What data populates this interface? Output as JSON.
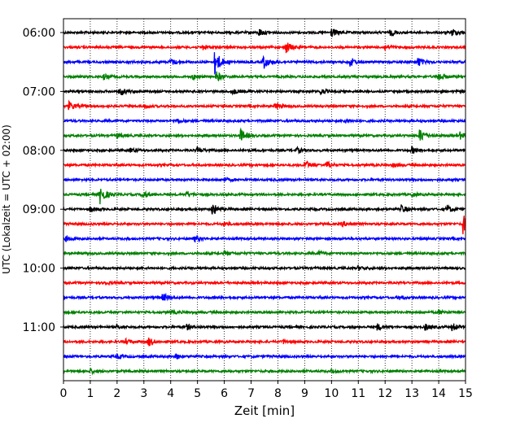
{
  "chart_data": {
    "type": "line",
    "xlabel": "Zeit  [min]",
    "ylabel": "UTC (Lokalzeit = UTC + 02:00)",
    "xlim": [
      0,
      15
    ],
    "xticks": [
      "0",
      "1",
      "2",
      "3",
      "4",
      "5",
      "6",
      "7",
      "8",
      "9",
      "10",
      "11",
      "12",
      "13",
      "14",
      "15"
    ],
    "ytick_labels": [
      "06:00",
      "07:00",
      "08:00",
      "09:00",
      "10:00",
      "11:00"
    ],
    "grid": "vertical dotted at each minute",
    "trace_interval_minutes": 15,
    "colors": [
      "#000000",
      "#ff0000",
      "#0000ff",
      "#008000"
    ],
    "traces": [
      {
        "start": "06:00",
        "color": "#000000",
        "events": [
          {
            "t": 7.3,
            "amp": 0.6
          },
          {
            "t": 10.0,
            "amp": 0.7
          },
          {
            "t": 12.2,
            "amp": 0.5
          },
          {
            "t": 14.5,
            "amp": 0.6
          }
        ]
      },
      {
        "start": "06:15",
        "color": "#ff0000",
        "events": [
          {
            "t": 8.3,
            "amp": 0.9
          },
          {
            "t": 5.2,
            "amp": 0.4
          },
          {
            "t": 12.0,
            "amp": 0.4
          }
        ]
      },
      {
        "start": "06:30",
        "color": "#0000ff",
        "events": [
          {
            "t": 5.65,
            "amp": 2.0
          },
          {
            "t": 7.45,
            "amp": 1.1
          },
          {
            "t": 10.7,
            "amp": 0.7
          },
          {
            "t": 13.2,
            "amp": 0.8
          },
          {
            "t": 4.0,
            "amp": 0.5
          }
        ]
      },
      {
        "start": "06:45",
        "color": "#008000",
        "events": [
          {
            "t": 5.7,
            "amp": 0.8
          },
          {
            "t": 4.8,
            "amp": 0.4
          },
          {
            "t": 14.0,
            "amp": 0.7
          },
          {
            "t": 1.5,
            "amp": 0.4
          }
        ]
      },
      {
        "start": "07:00",
        "color": "#000000",
        "events": [
          {
            "t": 2.1,
            "amp": 0.7
          },
          {
            "t": 6.3,
            "amp": 0.4
          },
          {
            "t": 9.6,
            "amp": 0.4
          }
        ]
      },
      {
        "start": "07:15",
        "color": "#ff0000",
        "events": [
          {
            "t": 0.2,
            "amp": 0.7
          },
          {
            "t": 7.9,
            "amp": 0.6
          },
          {
            "t": 3.0,
            "amp": 0.3
          }
        ]
      },
      {
        "start": "07:30",
        "color": "#0000ff",
        "events": [
          {
            "t": 4.2,
            "amp": 0.3
          },
          {
            "t": 10.5,
            "amp": 0.3
          }
        ]
      },
      {
        "start": "07:45",
        "color": "#008000",
        "events": [
          {
            "t": 6.6,
            "amp": 1.0
          },
          {
            "t": 13.3,
            "amp": 1.1
          },
          {
            "t": 2.0,
            "amp": 0.4
          },
          {
            "t": 14.8,
            "amp": 0.5
          }
        ]
      },
      {
        "start": "08:00",
        "color": "#000000",
        "events": [
          {
            "t": 5.0,
            "amp": 0.5
          },
          {
            "t": 8.7,
            "amp": 0.4
          },
          {
            "t": 13.0,
            "amp": 0.5
          },
          {
            "t": 2.5,
            "amp": 0.3
          }
        ]
      },
      {
        "start": "08:15",
        "color": "#ff0000",
        "events": [
          {
            "t": 9.0,
            "amp": 0.7
          },
          {
            "t": 9.8,
            "amp": 0.6
          },
          {
            "t": 12.3,
            "amp": 0.3
          }
        ]
      },
      {
        "start": "08:30",
        "color": "#0000ff",
        "events": [
          {
            "t": 6.0,
            "amp": 0.3
          }
        ]
      },
      {
        "start": "08:45",
        "color": "#008000",
        "events": [
          {
            "t": 1.35,
            "amp": 1.5
          },
          {
            "t": 2.95,
            "amp": 0.6
          },
          {
            "t": 4.6,
            "amp": 0.4
          },
          {
            "t": 13.0,
            "amp": 0.3
          }
        ]
      },
      {
        "start": "09:00",
        "color": "#000000",
        "events": [
          {
            "t": 5.55,
            "amp": 1.0
          },
          {
            "t": 12.6,
            "amp": 0.6
          },
          {
            "t": 14.3,
            "amp": 0.6
          },
          {
            "t": 1.0,
            "amp": 0.4
          }
        ]
      },
      {
        "start": "09:15",
        "color": "#ff0000",
        "events": [
          {
            "t": 14.9,
            "amp": 1.6
          },
          {
            "t": 10.4,
            "amp": 0.4
          },
          {
            "t": 6.0,
            "amp": 0.3
          }
        ]
      },
      {
        "start": "09:30",
        "color": "#0000ff",
        "events": [
          {
            "t": 4.9,
            "amp": 0.5
          },
          {
            "t": 0.1,
            "amp": 0.4
          }
        ]
      },
      {
        "start": "09:45",
        "color": "#008000",
        "events": [
          {
            "t": 6.0,
            "amp": 0.3
          },
          {
            "t": 9.5,
            "amp": 0.3
          }
        ]
      },
      {
        "start": "10:00",
        "color": "#000000",
        "events": [
          {
            "t": 11.0,
            "amp": 0.3
          }
        ]
      },
      {
        "start": "10:15",
        "color": "#ff0000",
        "events": [
          {
            "t": 1.5,
            "amp": 0.3
          }
        ]
      },
      {
        "start": "10:30",
        "color": "#0000ff",
        "events": [
          {
            "t": 3.7,
            "amp": 0.6
          },
          {
            "t": 12.5,
            "amp": 0.3
          }
        ]
      },
      {
        "start": "10:45",
        "color": "#008000",
        "events": [
          {
            "t": 4.0,
            "amp": 0.3
          },
          {
            "t": 14.0,
            "amp": 0.3
          }
        ]
      },
      {
        "start": "11:00",
        "color": "#000000",
        "events": [
          {
            "t": 4.6,
            "amp": 0.4
          },
          {
            "t": 11.7,
            "amp": 0.5
          },
          {
            "t": 13.5,
            "amp": 0.5
          },
          {
            "t": 14.5,
            "amp": 0.6
          },
          {
            "t": 2.0,
            "amp": 0.3
          }
        ]
      },
      {
        "start": "11:15",
        "color": "#ff0000",
        "events": [
          {
            "t": 3.15,
            "amp": 0.7
          },
          {
            "t": 2.3,
            "amp": 0.4
          },
          {
            "t": 8.2,
            "amp": 0.3
          }
        ]
      },
      {
        "start": "11:30",
        "color": "#0000ff",
        "events": [
          {
            "t": 4.15,
            "amp": 0.5
          },
          {
            "t": 2.0,
            "amp": 0.3
          }
        ]
      },
      {
        "start": "11:45",
        "color": "#008000",
        "events": [
          {
            "t": 1.0,
            "amp": 0.3
          },
          {
            "t": 10.0,
            "amp": 0.3
          }
        ]
      }
    ]
  }
}
